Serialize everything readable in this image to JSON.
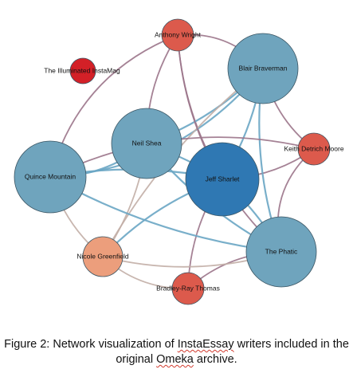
{
  "nodes": [
    {
      "id": "jeff",
      "label": "Jeff Sharlet",
      "color": "#2f78b3"
    },
    {
      "id": "blair",
      "label": "Blair Braverman",
      "color": "#6fa4bd"
    },
    {
      "id": "phatic",
      "label": "The Phatic",
      "color": "#6fa4bd"
    },
    {
      "id": "quince",
      "label": "Quince Mountain",
      "color": "#6fa4bd"
    },
    {
      "id": "neil",
      "label": "Neil Shea",
      "color": "#6fa4bd"
    },
    {
      "id": "anthony",
      "label": "Anthony Wright",
      "color": "#dc5a4c"
    },
    {
      "id": "keith",
      "label": "Keith Detrich Moore",
      "color": "#dc5a4c"
    },
    {
      "id": "bradley",
      "label": "Bradley-Ray Thomas",
      "color": "#dc5a4c"
    },
    {
      "id": "nicole",
      "label": "Nicole Greenfield",
      "color": "#ec9e7c"
    },
    {
      "id": "illuminated",
      "label": "The Illuminated InstaMag",
      "color": "#d32027"
    }
  ],
  "edges": [
    {
      "source": "jeff",
      "target": "blair",
      "color": "blue"
    },
    {
      "source": "jeff",
      "target": "phatic",
      "color": "blue"
    },
    {
      "source": "jeff",
      "target": "quince",
      "color": "blue"
    },
    {
      "source": "jeff",
      "target": "neil",
      "color": "blue"
    },
    {
      "source": "jeff",
      "target": "nicole",
      "color": "blue"
    },
    {
      "source": "jeff",
      "target": "keith",
      "color": "purple"
    },
    {
      "source": "jeff",
      "target": "anthony",
      "color": "purple"
    },
    {
      "source": "jeff",
      "target": "bradley",
      "color": "purple"
    },
    {
      "source": "blair",
      "target": "neil",
      "color": "blue"
    },
    {
      "source": "blair",
      "target": "quince",
      "color": "blue"
    },
    {
      "source": "blair",
      "target": "phatic",
      "color": "blue"
    },
    {
      "source": "blair",
      "target": "anthony",
      "color": "purple"
    },
    {
      "source": "blair",
      "target": "keith",
      "color": "purple"
    },
    {
      "source": "blair",
      "target": "nicole",
      "color": "tan"
    },
    {
      "source": "neil",
      "target": "quince",
      "color": "blue"
    },
    {
      "source": "neil",
      "target": "phatic",
      "color": "blue"
    },
    {
      "source": "neil",
      "target": "anthony",
      "color": "purple"
    },
    {
      "source": "neil",
      "target": "nicole",
      "color": "tan"
    },
    {
      "source": "quince",
      "target": "phatic",
      "color": "blue"
    },
    {
      "source": "quince",
      "target": "nicole",
      "color": "tan"
    },
    {
      "source": "quince",
      "target": "anthony",
      "color": "purple"
    },
    {
      "source": "quince",
      "target": "keith",
      "color": "purple"
    },
    {
      "source": "phatic",
      "target": "keith",
      "color": "purple"
    },
    {
      "source": "phatic",
      "target": "bradley",
      "color": "purple"
    },
    {
      "source": "phatic",
      "target": "nicole",
      "color": "tan"
    },
    {
      "source": "phatic",
      "target": "anthony",
      "color": "purple"
    },
    {
      "source": "nicole",
      "target": "bradley",
      "color": "tan"
    }
  ],
  "edge_colors": {
    "blue": "#6aa6c4",
    "purple": "#9b7489",
    "tan": "#c2aea6"
  },
  "caption": {
    "prefix": "Figure 2: Network visualization of ",
    "term1": "InstaEssay",
    "middle": " writers included in the original ",
    "term2": "Omeka",
    "suffix": " archive."
  }
}
